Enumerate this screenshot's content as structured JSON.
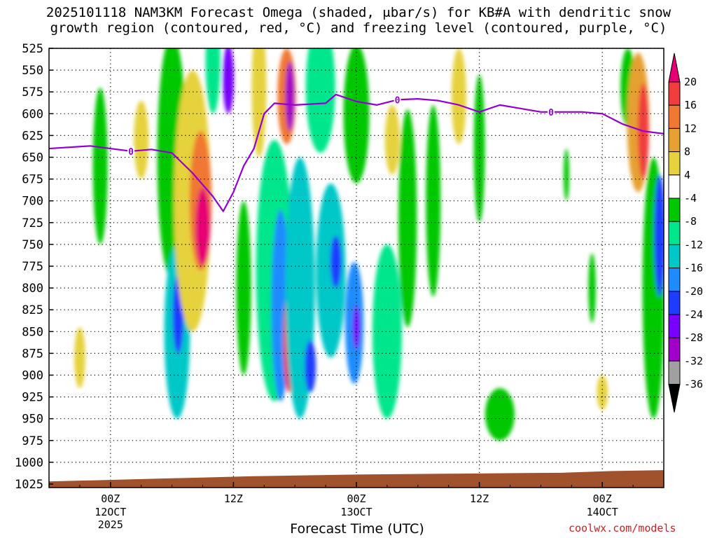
{
  "chart_data": {
    "type": "heatmap",
    "title_line1": "2025101118 NAM3KM Forecast Omega (shaded, μbar/s) for KB#A with dendritic snow",
    "title_line2": "growth region (contoured, red, °C) and freezing level (contoured, purple, °C)",
    "xlabel": "Forecast Time (UTC)",
    "credit": "coolwx.com/models",
    "y_ticks": [
      "525",
      "550",
      "575",
      "600",
      "625",
      "650",
      "675",
      "700",
      "725",
      "750",
      "775",
      "800",
      "825",
      "850",
      "875",
      "900",
      "925",
      "950",
      "975",
      "1000",
      "1025"
    ],
    "x_ticks": [
      {
        "line1": "00Z",
        "line2": "12OCT",
        "line3": "2025",
        "hour": 6
      },
      {
        "line1": "12Z",
        "line2": "",
        "line3": "",
        "hour": 18
      },
      {
        "line1": "00Z",
        "line2": "13OCT",
        "line3": "",
        "hour": 30
      },
      {
        "line1": "12Z",
        "line2": "",
        "line3": "",
        "hour": 42
      },
      {
        "line1": "00Z",
        "line2": "14OCT",
        "line3": "",
        "hour": 54
      }
    ],
    "xlim_hours": [
      0,
      60
    ],
    "ylim_hpa": [
      525,
      1025
    ],
    "colorbar_labels": [
      "20",
      "16",
      "12",
      "8",
      "4",
      "-4",
      "-8",
      "-12",
      "-16",
      "-20",
      "-24",
      "-28",
      "-32",
      "-36"
    ],
    "colorbar_colors": [
      "#e60073",
      "#f03c3c",
      "#f07832",
      "#e6a032",
      "#e6d23c",
      "#ffffff",
      "#00c800",
      "#00e68c",
      "#00c8c8",
      "#1e8cff",
      "#1e3cff",
      "#7800ff",
      "#a000c8",
      "#a0a0a0",
      "#000000"
    ],
    "freezing_level_hpa": [
      [
        0,
        640
      ],
      [
        4,
        637
      ],
      [
        8,
        643
      ],
      [
        10,
        641
      ],
      [
        12,
        645
      ],
      [
        14,
        668
      ],
      [
        16,
        695
      ],
      [
        17,
        712
      ],
      [
        18,
        690
      ],
      [
        19,
        660
      ],
      [
        20,
        640
      ],
      [
        21,
        600
      ],
      [
        22,
        588
      ],
      [
        24,
        590
      ],
      [
        27,
        588
      ],
      [
        28,
        578
      ],
      [
        30,
        586
      ],
      [
        32,
        590
      ],
      [
        34,
        584
      ],
      [
        36,
        583
      ],
      [
        38,
        585
      ],
      [
        40,
        590
      ],
      [
        42,
        598
      ],
      [
        44,
        590
      ],
      [
        46,
        594
      ],
      [
        48,
        598
      ],
      [
        50,
        598
      ],
      [
        52,
        598
      ],
      [
        54,
        600
      ],
      [
        56,
        612
      ],
      [
        58,
        620
      ],
      [
        60,
        623
      ]
    ],
    "freezing_level_color": "#9400d3",
    "freezing_level_label": "0",
    "ground_color": "#a0522d",
    "omega_cells": [
      {
        "t": 5.0,
        "p": 660,
        "dt": 0.8,
        "dp": 180,
        "v": -5
      },
      {
        "t": 3.0,
        "p": 880,
        "dt": 0.6,
        "dp": 70,
        "v": 5
      },
      {
        "t": 9.0,
        "p": 630,
        "dt": 0.8,
        "dp": 90,
        "v": 5
      },
      {
        "t": 12.0,
        "p": 650,
        "dt": 1.6,
        "dp": 280,
        "v": -6
      },
      {
        "t": 12.5,
        "p": 850,
        "dt": 1.4,
        "dp": 200,
        "v": -14
      },
      {
        "t": 12.6,
        "p": 830,
        "dt": 0.6,
        "dp": 90,
        "v": -22
      },
      {
        "t": 14.0,
        "p": 700,
        "dt": 2.0,
        "dp": 300,
        "v": 6
      },
      {
        "t": 14.8,
        "p": 700,
        "dt": 1.2,
        "dp": 160,
        "v": 14
      },
      {
        "t": 15.0,
        "p": 730,
        "dt": 0.8,
        "dp": 90,
        "v": 22
      },
      {
        "t": 16.0,
        "p": 540,
        "dt": 0.8,
        "dp": 120,
        "v": -10
      },
      {
        "t": 17.5,
        "p": 560,
        "dt": 0.6,
        "dp": 80,
        "v": -26
      },
      {
        "t": 19.0,
        "p": 800,
        "dt": 0.8,
        "dp": 200,
        "v": -5
      },
      {
        "t": 20.5,
        "p": 570,
        "dt": 0.8,
        "dp": 160,
        "v": 6
      },
      {
        "t": 22.0,
        "p": 780,
        "dt": 2.0,
        "dp": 300,
        "v": -8
      },
      {
        "t": 22.6,
        "p": 820,
        "dt": 1.0,
        "dp": 220,
        "v": -18
      },
      {
        "t": 23.2,
        "p": 580,
        "dt": 1.0,
        "dp": 110,
        "v": 12
      },
      {
        "t": 23.5,
        "p": 580,
        "dt": 0.5,
        "dp": 80,
        "v": -30
      },
      {
        "t": 23.4,
        "p": 860,
        "dt": 0.6,
        "dp": 120,
        "v": 16
      },
      {
        "t": 23.5,
        "p": 880,
        "dt": 0.4,
        "dp": 60,
        "v": 22
      },
      {
        "t": 24.5,
        "p": 800,
        "dt": 1.6,
        "dp": 300,
        "v": -12
      },
      {
        "t": 25.5,
        "p": 890,
        "dt": 0.6,
        "dp": 60,
        "v": -22
      },
      {
        "t": 26.5,
        "p": 570,
        "dt": 1.6,
        "dp": 150,
        "v": -8
      },
      {
        "t": 27.5,
        "p": 780,
        "dt": 1.6,
        "dp": 200,
        "v": -12
      },
      {
        "t": 28.0,
        "p": 770,
        "dt": 0.6,
        "dp": 60,
        "v": -22
      },
      {
        "t": 29.8,
        "p": 840,
        "dt": 1.0,
        "dp": 140,
        "v": -16
      },
      {
        "t": 30.0,
        "p": 845,
        "dt": 0.4,
        "dp": 50,
        "v": -24
      },
      {
        "t": 30.0,
        "p": 600,
        "dt": 1.4,
        "dp": 160,
        "v": -6
      },
      {
        "t": 33.0,
        "p": 850,
        "dt": 1.6,
        "dp": 200,
        "v": -10
      },
      {
        "t": 33.5,
        "p": 630,
        "dt": 0.8,
        "dp": 80,
        "v": 5
      },
      {
        "t": 35.0,
        "p": 720,
        "dt": 1.0,
        "dp": 250,
        "v": -6
      },
      {
        "t": 37.5,
        "p": 700,
        "dt": 0.8,
        "dp": 220,
        "v": -5
      },
      {
        "t": 40.0,
        "p": 580,
        "dt": 0.8,
        "dp": 110,
        "v": 7
      },
      {
        "t": 42.0,
        "p": 640,
        "dt": 0.6,
        "dp": 170,
        "v": -5
      },
      {
        "t": 44.0,
        "p": 945,
        "dt": 1.6,
        "dp": 60,
        "v": -6
      },
      {
        "t": 50.5,
        "p": 670,
        "dt": 0.3,
        "dp": 60,
        "v": -5
      },
      {
        "t": 53.0,
        "p": 800,
        "dt": 0.4,
        "dp": 80,
        "v": -5
      },
      {
        "t": 54.0,
        "p": 920,
        "dt": 0.6,
        "dp": 40,
        "v": 5
      },
      {
        "t": 56.5,
        "p": 570,
        "dt": 0.8,
        "dp": 90,
        "v": -6
      },
      {
        "t": 57.5,
        "p": 610,
        "dt": 1.2,
        "dp": 160,
        "v": 8
      },
      {
        "t": 58.0,
        "p": 620,
        "dt": 0.6,
        "dp": 110,
        "v": 16
      },
      {
        "t": 59.0,
        "p": 800,
        "dt": 1.2,
        "dp": 300,
        "v": -7
      },
      {
        "t": 59.6,
        "p": 740,
        "dt": 0.6,
        "dp": 140,
        "v": -20
      }
    ]
  }
}
